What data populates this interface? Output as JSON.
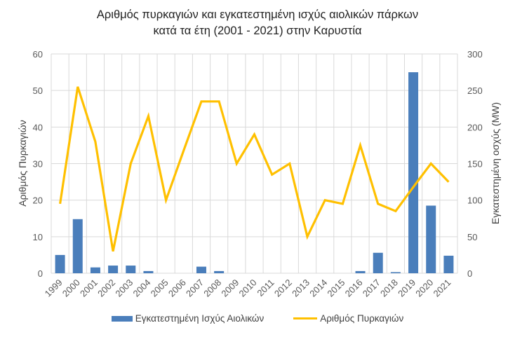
{
  "title": {
    "line1": "Αριθμός πυρκαγιών και εγκατεστημένη ισχύς αιολικών πάρκων",
    "line2": "κατά τα έτη (2001 - 2021) στην Καρυστία"
  },
  "axes": {
    "left_title": "Αριθμός Πυρκαγιών",
    "right_title": "Εγκατεστημένη οσχύς (MW)",
    "left_ticks": [
      "0",
      "10",
      "20",
      "30",
      "40",
      "50",
      "60"
    ],
    "right_ticks": [
      "0",
      "50",
      "100",
      "150",
      "200",
      "250",
      "300"
    ]
  },
  "legend": {
    "bar_label": "Εγκατεστημένη Ισχύς Αιολικών",
    "line_label": "Αριθμός Πυρκαγιών"
  },
  "colors": {
    "bar": "#4a7ebb",
    "line": "#ffc000",
    "grid": "#d9d9d9"
  },
  "chart_data": {
    "type": "bar+line",
    "title": "Αριθμός πυρκαγιών και εγκατεστημένη ισχύς αιολικών πάρκων κατά τα έτη (2001 - 2021) στην Καρυστία",
    "categories": [
      "1999",
      "2000",
      "2001",
      "2002",
      "2003",
      "2004",
      "2005",
      "2006",
      "2007",
      "2008",
      "2009",
      "2010",
      "2011",
      "2012",
      "2013",
      "2014",
      "2015",
      "2016",
      "2017",
      "2018",
      "2019",
      "2020",
      "2021"
    ],
    "series": [
      {
        "name": "Εγκατεστημένη Ισχύς Αιολικών",
        "type": "bar",
        "axis": "left (bars read 0-60 left / 0-300 right)",
        "values_left_axis": [
          5,
          14.8,
          1.6,
          2.1,
          2.1,
          0.6,
          0,
          0,
          1.8,
          0.6,
          0,
          0,
          0,
          0,
          0,
          0,
          0,
          0.6,
          5.6,
          0.3,
          55,
          18.5,
          4.8
        ]
      },
      {
        "name": "Αριθμός Πυρκαγιών",
        "type": "line",
        "axis": "right",
        "values_right_axis": [
          95,
          255,
          180,
          30,
          150,
          215,
          100,
          168,
          235,
          235,
          150,
          190,
          135,
          150,
          50,
          100,
          95,
          175,
          95,
          85,
          118,
          150,
          125
        ]
      }
    ],
    "ylabel_left": "Αριθμός Πυρκαγιών",
    "ylabel_right": "Εγκατεστημένη οσχύς (MW)",
    "ylim_left": [
      0,
      60
    ],
    "ylim_right": [
      0,
      300
    ],
    "grid": true,
    "legend_position": "bottom"
  }
}
